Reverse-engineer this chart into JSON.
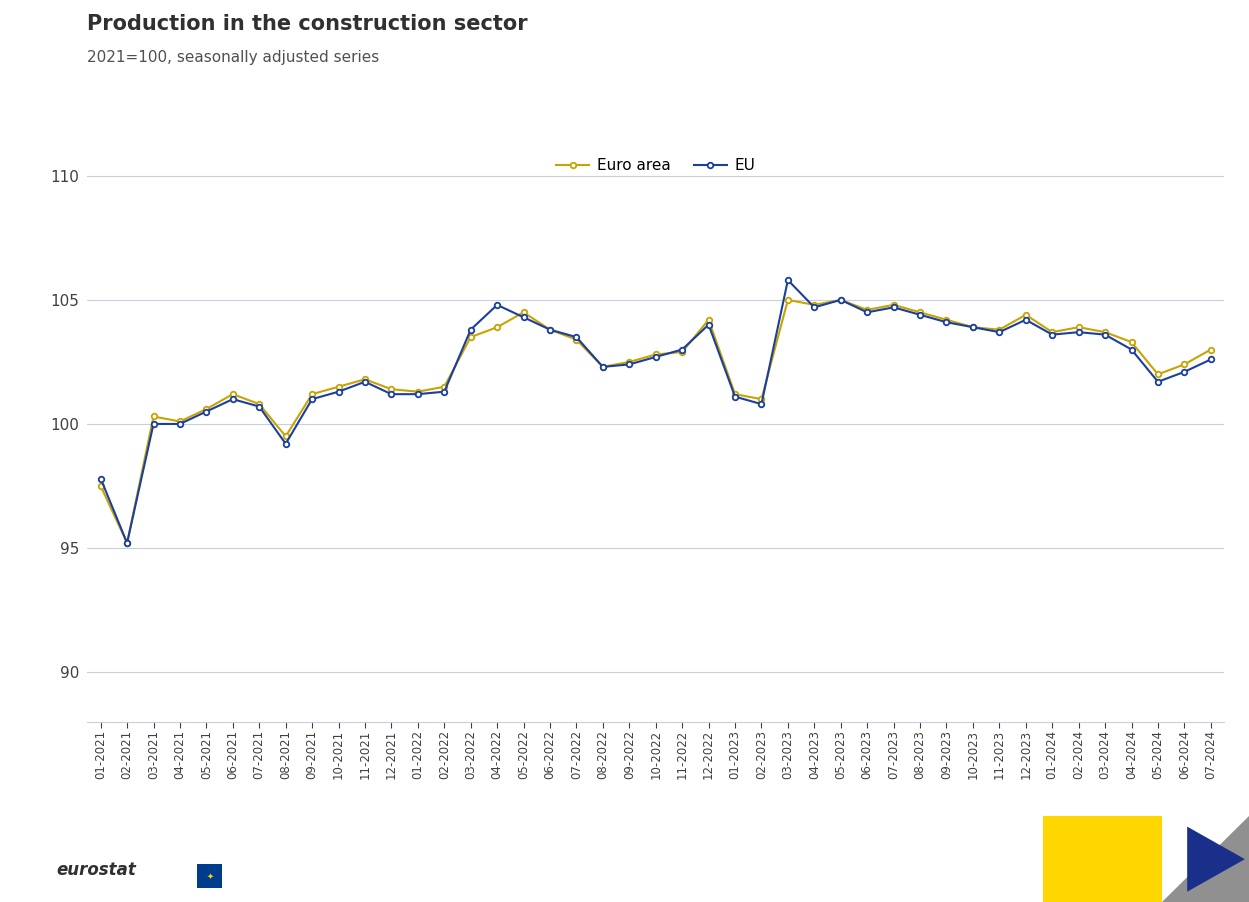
{
  "title": "Production in the construction sector",
  "subtitle": "2021=100, seasonally adjusted series",
  "legend_labels": [
    "Euro area",
    "EU"
  ],
  "euro_area_color": "#c8a400",
  "eu_color": "#1a3f9e",
  "background_color": "#ffffff",
  "grid_color": "#c8d0dc",
  "ylim": [
    88,
    112
  ],
  "yticks": [
    90,
    95,
    100,
    105,
    110
  ],
  "labels": [
    "01-2021",
    "02-2021",
    "03-2021",
    "04-2021",
    "05-2021",
    "06-2021",
    "07-2021",
    "08-2021",
    "09-2021",
    "10-2021",
    "11-2021",
    "12-2021",
    "01-2022",
    "02-2022",
    "03-2022",
    "04-2022",
    "05-2022",
    "06-2022",
    "07-2022",
    "08-2022",
    "09-2022",
    "10-2022",
    "11-2022",
    "12-2022",
    "01-2023",
    "02-2023",
    "03-2023",
    "04-2023",
    "05-2023",
    "06-2023",
    "07-2023",
    "08-2023",
    "09-2023",
    "10-2023",
    "11-2023",
    "12-2023",
    "01-2024",
    "02-2024",
    "03-2024",
    "04-2024",
    "05-2024",
    "06-2024",
    "07-2024"
  ],
  "euro_area": [
    97.5,
    95.2,
    100.3,
    100.1,
    100.6,
    101.2,
    100.8,
    99.5,
    101.2,
    101.5,
    101.8,
    101.4,
    101.3,
    101.5,
    103.5,
    103.9,
    104.5,
    103.8,
    103.4,
    102.3,
    102.5,
    102.8,
    102.9,
    104.2,
    101.2,
    101.0,
    105.0,
    104.8,
    105.0,
    104.6,
    104.8,
    104.5,
    104.2,
    103.9,
    103.8,
    104.4,
    103.7,
    103.9,
    103.7,
    103.3,
    102.0,
    102.4,
    103.0
  ],
  "eu": [
    97.8,
    95.2,
    100.0,
    100.0,
    100.5,
    101.0,
    100.7,
    99.2,
    101.0,
    101.3,
    101.7,
    101.2,
    101.2,
    101.3,
    103.8,
    104.8,
    104.3,
    103.8,
    103.5,
    102.3,
    102.4,
    102.7,
    103.0,
    104.0,
    101.1,
    100.8,
    105.8,
    104.7,
    105.0,
    104.5,
    104.7,
    104.4,
    104.1,
    103.9,
    103.7,
    104.2,
    103.6,
    103.7,
    103.6,
    103.0,
    101.7,
    102.1,
    102.6
  ],
  "title_fontsize": 15,
  "subtitle_fontsize": 11,
  "legend_fontsize": 11,
  "ytick_fontsize": 11,
  "xtick_fontsize": 8.5
}
